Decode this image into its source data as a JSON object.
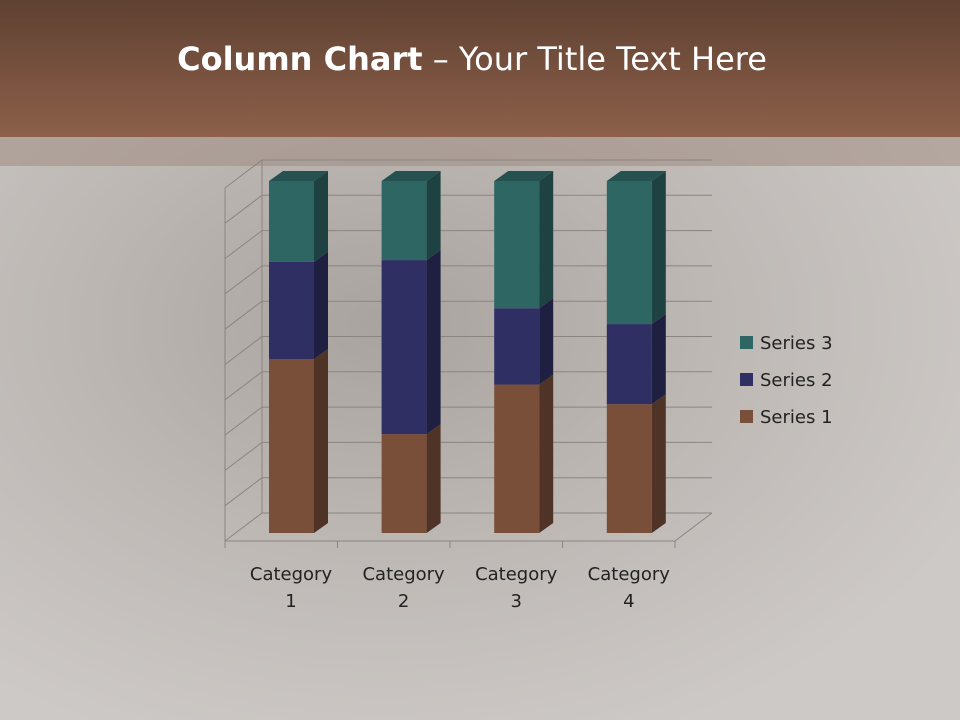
{
  "title": {
    "bold": "Column Chart",
    "rest": " – Your Title Text Here"
  },
  "chart_data": {
    "type": "bar",
    "stacking": "percent",
    "three_d": true,
    "categories": [
      "Category 1",
      "Category 2",
      "Category 3",
      "Category 4"
    ],
    "series": [
      {
        "name": "Series 1",
        "values": [
          4.3,
          2.5,
          3.5,
          4.5
        ],
        "color": "#7a4f3a"
      },
      {
        "name": "Series 2",
        "values": [
          2.4,
          4.4,
          1.8,
          2.8
        ],
        "color": "#2f2f64"
      },
      {
        "name": "Series 3",
        "values": [
          2,
          2,
          3,
          5
        ],
        "color": "#2e6664"
      }
    ],
    "yticks": [
      "0%",
      "10%",
      "20%",
      "30%",
      "40%",
      "50%",
      "60%",
      "70%",
      "80%",
      "90%",
      "100%"
    ],
    "ylim": [
      0,
      100
    ],
    "grid": true,
    "legend": "right"
  }
}
